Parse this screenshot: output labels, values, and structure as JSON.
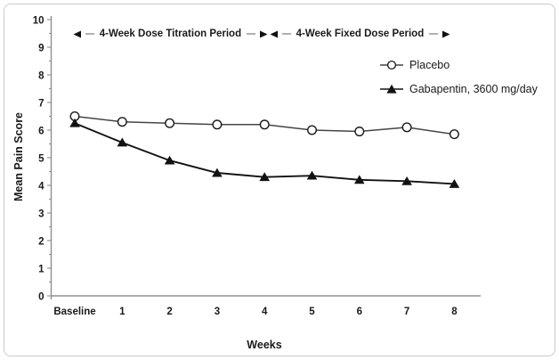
{
  "chart_data": {
    "type": "line",
    "title": "",
    "xlabel": "Weeks",
    "ylabel": "Mean Pain Score",
    "categories": [
      "Baseline",
      "1",
      "2",
      "3",
      "4",
      "5",
      "6",
      "7",
      "8"
    ],
    "ylim": [
      0,
      10
    ],
    "ytick_interval": 1,
    "y_minor_tick_interval": 0.5,
    "grid": false,
    "legend_position": "upper-right-inside",
    "series": [
      {
        "name": "Placebo",
        "marker": "open-circle",
        "color": "#454545",
        "values": [
          6.5,
          6.3,
          6.25,
          6.2,
          6.2,
          6.0,
          5.95,
          6.1,
          5.85
        ]
      },
      {
        "name": "Gabapentin, 3600 mg/day",
        "marker": "filled-triangle",
        "color": "#121212",
        "values": [
          6.25,
          5.55,
          4.9,
          4.45,
          4.3,
          4.35,
          4.2,
          4.15,
          4.05
        ]
      }
    ],
    "annotations": [
      {
        "text": "4-Week Dose Titration Period",
        "x_from": "Baseline",
        "x_to": "4",
        "arrows": "double-headed"
      },
      {
        "text": "4-Week Fixed Dose Period",
        "x_from": "4",
        "x_to": "8",
        "arrows": "double-headed"
      }
    ]
  },
  "style": {
    "background": "#ffffff",
    "frame_border": "#c9c9c9",
    "axis_color": "#8f8f8f",
    "text_color": "#1a1a1a",
    "annotation_line_color": "#b0b0b0",
    "marker_fill": "#ffffff"
  }
}
